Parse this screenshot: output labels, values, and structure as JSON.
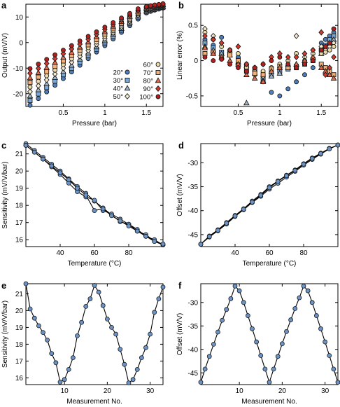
{
  "colors": {
    "blue": "#4f7fb8",
    "blue_light": "#7aa8d6",
    "gray_blue": "#9fb6c9",
    "cream": "#f3ead0",
    "beige": "#ecd9a8",
    "light_orange": "#f1b07a",
    "orange_red": "#e06a4a",
    "red": "#d23a2e",
    "dark_red": "#b11f1f"
  },
  "chart_data": [
    {
      "panel": "a",
      "type": "scatter",
      "xlabel": "Pressure (bar)",
      "ylabel": "Output (mV/V)",
      "xlim": [
        0.05,
        1.7
      ],
      "ylim": [
        -25,
        15
      ],
      "xticks": [
        0.5,
        1,
        1.5
      ],
      "xtick_labels": [
        "0.5",
        "1",
        "1.5"
      ],
      "yticks": [
        -20,
        -10,
        0,
        10
      ],
      "ytick_labels": [
        "-20",
        "-10",
        "0",
        "10"
      ],
      "legend_position": "bottom-right",
      "pressures": [
        0.1,
        0.2,
        0.3,
        0.4,
        0.5,
        0.6,
        0.7,
        0.8,
        0.9,
        1.0,
        1.1,
        1.2,
        1.3,
        1.4,
        1.5,
        1.55,
        1.6,
        1.65,
        1.7
      ],
      "series": [
        {
          "name": "20°",
          "marker": "circle",
          "color": "#4f7fb8",
          "y": [
            -24.5,
            -21.9,
            -19.3,
            -16.7,
            -14.1,
            -11.5,
            -8.9,
            -6.3,
            -3.7,
            -1.2,
            1.4,
            4.0,
            6.6,
            9.2,
            11.6,
            12.2,
            12.7,
            13.1,
            13.5
          ]
        },
        {
          "name": "30°",
          "marker": "square",
          "color": "#7aa8d6",
          "y": [
            -22.7,
            -20.1,
            -17.6,
            -15.1,
            -12.6,
            -10.1,
            -7.6,
            -5.1,
            -2.6,
            -0.1,
            2.4,
            4.9,
            7.4,
            9.9,
            12.0,
            12.5,
            13.0,
            13.4,
            13.8
          ]
        },
        {
          "name": "40°",
          "marker": "triangle",
          "color": "#9fb6c9",
          "y": [
            -20.9,
            -18.5,
            -16.1,
            -13.7,
            -11.3,
            -8.9,
            -6.5,
            -4.1,
            -1.7,
            0.7,
            3.1,
            5.5,
            7.9,
            10.3,
            12.3,
            12.8,
            13.3,
            13.7,
            14.0
          ]
        },
        {
          "name": "50°",
          "marker": "diamond",
          "color": "#f3ead0",
          "y": [
            -19.2,
            -16.9,
            -14.6,
            -12.3,
            -10.0,
            -7.7,
            -5.4,
            -3.1,
            -0.8,
            1.5,
            3.8,
            6.1,
            8.4,
            10.7,
            12.6,
            13.1,
            13.5,
            13.9,
            14.2
          ]
        },
        {
          "name": "60°",
          "marker": "circle",
          "color": "#ecd9a8",
          "y": [
            -17.4,
            -15.2,
            -13.0,
            -10.8,
            -8.6,
            -6.4,
            -4.2,
            -2.0,
            0.2,
            2.4,
            4.6,
            6.8,
            9.0,
            11.2,
            12.9,
            13.3,
            13.7,
            14.1,
            14.4
          ]
        },
        {
          "name": "70°",
          "marker": "square",
          "color": "#f1b07a",
          "y": [
            -15.6,
            -13.5,
            -11.4,
            -9.3,
            -7.2,
            -5.1,
            -3.0,
            -0.9,
            1.2,
            3.3,
            5.4,
            7.5,
            9.6,
            11.7,
            13.2,
            13.6,
            14.0,
            14.3,
            14.6
          ]
        },
        {
          "name": "80°",
          "marker": "triangle",
          "color": "#e06a4a",
          "y": [
            -13.8,
            -11.8,
            -9.8,
            -7.8,
            -5.8,
            -3.8,
            -1.8,
            0.2,
            2.2,
            4.2,
            6.2,
            8.2,
            10.2,
            12.2,
            13.5,
            13.9,
            14.2,
            14.5,
            14.8
          ]
        },
        {
          "name": "90°",
          "marker": "diamond",
          "color": "#d23a2e",
          "y": [
            -12.0,
            -10.1,
            -8.2,
            -6.3,
            -4.4,
            -2.5,
            -0.6,
            1.3,
            3.2,
            5.1,
            7.0,
            8.9,
            10.8,
            12.7,
            13.8,
            14.1,
            14.4,
            14.7,
            15.0
          ]
        },
        {
          "name": "100°",
          "marker": "circle",
          "color": "#b11f1f",
          "y": [
            -10.2,
            -8.4,
            -6.6,
            -4.8,
            -3.0,
            -1.2,
            0.6,
            2.4,
            4.2,
            6.0,
            7.8,
            9.6,
            11.4,
            13.2,
            14.1,
            14.4,
            14.7,
            14.9,
            15.2
          ]
        }
      ]
    },
    {
      "panel": "b",
      "type": "scatter",
      "xlabel": "Pressure (bar)",
      "ylabel": "Linear error (%)",
      "xlim": [
        0.05,
        1.7
      ],
      "ylim": [
        -0.65,
        0.8
      ],
      "xticks": [
        0.5,
        1,
        1.5
      ],
      "xtick_labels": [
        "0.5",
        "1",
        "1.5"
      ],
      "yticks": [
        -0.5,
        0,
        0.5
      ],
      "ytick_labels": [
        "-0.5",
        "0",
        "0.5"
      ],
      "pressures": [
        0.1,
        0.2,
        0.3,
        0.4,
        0.5,
        0.6,
        0.7,
        0.8,
        0.9,
        1.0,
        1.1,
        1.2,
        1.3,
        1.4,
        1.5,
        1.55,
        1.6,
        1.65
      ],
      "series": [
        {
          "name": "20°",
          "y": [
            0.3,
            0.22,
            0.33,
            0.15,
            0.05,
            -0.05,
            -0.15,
            -0.3,
            -0.45,
            -0.5,
            -0.4,
            -0.3,
            -0.2,
            -0.1,
            0.25,
            0.3,
            0.35,
            0.4
          ]
        },
        {
          "name": "30°",
          "y": [
            0.25,
            0.18,
            0.12,
            0.1,
            0.02,
            -0.08,
            -0.12,
            -0.25,
            -0.2,
            -0.15,
            -0.12,
            -0.08,
            -0.05,
            0.02,
            0.15,
            0.22,
            0.3,
            0.35
          ]
        },
        {
          "name": "40°",
          "y": [
            0.2,
            0.15,
            0.1,
            0.08,
            -0.02,
            -0.6,
            -0.18,
            -0.28,
            -0.22,
            -0.18,
            -0.1,
            -0.05,
            0.0,
            0.05,
            0.1,
            0.18,
            0.25,
            0.3
          ]
        },
        {
          "name": "50°",
          "y": [
            0.45,
            0.35,
            0.25,
            0.12,
            -0.05,
            -0.1,
            -0.15,
            -0.22,
            -0.15,
            -0.1,
            -0.08,
            0.35,
            0.05,
            0.15,
            0.2,
            0.15,
            0.2,
            0.25
          ]
        },
        {
          "name": "60°",
          "y": [
            0.4,
            0.3,
            0.2,
            0.15,
            0.1,
            -0.1,
            -0.2,
            -0.15,
            -0.1,
            -0.05,
            0.0,
            0.1,
            0.0,
            0.1,
            0.1,
            0.12,
            0.15,
            0.2
          ]
        },
        {
          "name": "70°",
          "y": [
            0.1,
            0.12,
            0.05,
            0.08,
            0.0,
            -0.15,
            -0.18,
            -0.2,
            -0.12,
            -0.08,
            -0.1,
            -0.1,
            -0.05,
            0.0,
            -0.05,
            -0.1,
            -0.15,
            -0.2
          ]
        },
        {
          "name": "80°",
          "y": [
            0.18,
            0.1,
            0.05,
            0.0,
            -0.05,
            -0.2,
            -0.25,
            -0.3,
            -0.15,
            -0.1,
            -0.05,
            -0.05,
            0.0,
            0.05,
            -0.1,
            -0.15,
            -0.2,
            -0.25
          ]
        },
        {
          "name": "90°",
          "y": [
            0.35,
            0.3,
            0.25,
            0.15,
            0.2,
            -0.05,
            -0.1,
            -0.05,
            0.05,
            0.1,
            0.05,
            0.05,
            0.1,
            0.15,
            0.4,
            -0.2,
            -0.1,
            0.05
          ]
        },
        {
          "name": "100°",
          "y": [
            0.05,
            0.0,
            0.02,
            -0.05,
            -0.1,
            -0.15,
            -0.1,
            -0.05,
            0.0,
            0.05,
            -0.05,
            -0.1,
            -0.05,
            0.0,
            0.15,
            0.2,
            0.25,
            0.45
          ]
        }
      ]
    },
    {
      "panel": "c",
      "type": "line",
      "xlabel": "Temperature (°C)",
      "ylabel": "Sensitivity (mV/V/bar)",
      "xlim": [
        20,
        100
      ],
      "ylim": [
        15.6,
        21.6
      ],
      "xticks": [
        40,
        60,
        80
      ],
      "xtick_labels": [
        "40",
        "60",
        "80"
      ],
      "yticks": [
        16,
        17,
        18,
        19,
        20,
        21
      ],
      "ytick_labels": [
        "16",
        "17",
        "18",
        "19",
        "20",
        "21"
      ],
      "cycles": [
        {
          "x": [
            20,
            25,
            30,
            35,
            40,
            45,
            50,
            55,
            60,
            65,
            70,
            75,
            80,
            85,
            90,
            95,
            100
          ],
          "y": [
            21.6,
            21.2,
            20.8,
            20.4,
            20.0,
            19.55,
            19.1,
            18.7,
            18.25,
            17.85,
            17.45,
            17.05,
            16.9,
            16.5,
            16.3,
            15.9,
            15.7
          ]
        },
        {
          "x": [
            100,
            95,
            90,
            85,
            80,
            75,
            70,
            65,
            60,
            55,
            50,
            45,
            40,
            35,
            30,
            25,
            20
          ],
          "y": [
            15.7,
            16.0,
            16.2,
            16.6,
            16.9,
            17.2,
            17.5,
            17.7,
            18.3,
            18.5,
            18.8,
            19.3,
            19.8,
            20.25,
            20.7,
            21.1,
            21.5
          ]
        },
        {
          "x": [
            20,
            25,
            30,
            35,
            40,
            45,
            50,
            55,
            60,
            65,
            70,
            75,
            80,
            85,
            90,
            95,
            100
          ],
          "y": [
            21.5,
            21.1,
            20.7,
            20.3,
            19.9,
            19.5,
            19.0,
            18.6,
            17.7,
            17.8,
            17.4,
            17.1,
            16.8,
            16.5,
            16.2,
            15.9,
            15.75
          ]
        }
      ]
    },
    {
      "panel": "d",
      "type": "line",
      "xlabel": "Temperature (°C)",
      "ylabel": "Offset (mV/V)",
      "xlim": [
        20,
        100
      ],
      "ylim": [
        -47.5,
        -26
      ],
      "xticks": [
        40,
        60,
        80
      ],
      "xtick_labels": [
        "40",
        "60",
        "80"
      ],
      "yticks": [
        -45,
        -40,
        -35,
        -30
      ],
      "ytick_labels": [
        "-45",
        "-40",
        "-35",
        "-30"
      ],
      "cycles": [
        {
          "x": [
            20,
            25,
            30,
            35,
            40,
            45,
            50,
            55,
            60,
            65,
            70,
            75,
            80,
            85,
            90,
            95,
            100
          ],
          "y": [
            -47.0,
            -45.3,
            -44.0,
            -42.5,
            -41.0,
            -39.6,
            -38.0,
            -36.6,
            -35.0,
            -33.8,
            -32.6,
            -31.5,
            -30.2,
            -29.0,
            -28.0,
            -27.0,
            -26.3
          ]
        },
        {
          "x": [
            100,
            95,
            90,
            85,
            80,
            75,
            70,
            65,
            60,
            55,
            50,
            45,
            40,
            35,
            30,
            25,
            20
          ],
          "y": [
            -26.3,
            -27.1,
            -28.2,
            -29.3,
            -30.5,
            -31.8,
            -33.0,
            -34.3,
            -35.5,
            -37.0,
            -38.3,
            -39.8,
            -41.2,
            -42.8,
            -44.2,
            -45.5,
            -47.0
          ]
        },
        {
          "x": [
            20,
            25,
            30,
            35,
            40,
            45,
            50,
            55,
            60,
            65,
            70,
            75,
            80,
            85,
            90,
            95,
            100
          ],
          "y": [
            -47.0,
            -45.4,
            -44.1,
            -42.6,
            -41.1,
            -39.7,
            -38.2,
            -36.8,
            -35.2,
            -33.9,
            -32.7,
            -31.6,
            -30.3,
            -29.1,
            -28.1,
            -27.1,
            -26.3
          ]
        }
      ]
    },
    {
      "panel": "e",
      "type": "line",
      "xlabel": "Measurement No.",
      "ylabel": "Sensitivity (mV/V/bar)",
      "xlim": [
        1,
        33
      ],
      "ylim": [
        15.6,
        21.6
      ],
      "xticks": [
        10,
        20,
        30
      ],
      "xtick_labels": [
        "10",
        "20",
        "30"
      ],
      "yticks": [
        16,
        17,
        18,
        19,
        20,
        21
      ],
      "ytick_labels": [
        "16",
        "17",
        "18",
        "19",
        "20",
        "21"
      ],
      "x": [
        1,
        2,
        3,
        4,
        5,
        6,
        7,
        8,
        9,
        10,
        11,
        12,
        13,
        14,
        15,
        16,
        17,
        18,
        19,
        20,
        21,
        22,
        23,
        24,
        25,
        26,
        27,
        28,
        29,
        30,
        31,
        32,
        33
      ],
      "y": [
        21.6,
        20.1,
        19.55,
        19.1,
        18.7,
        18.25,
        17.45,
        16.9,
        15.75,
        15.9,
        16.5,
        17.2,
        18.5,
        19.3,
        20.25,
        20.7,
        21.5,
        21.1,
        20.3,
        19.5,
        19.0,
        18.6,
        17.7,
        16.8,
        15.7,
        15.9,
        16.5,
        17.2,
        17.8,
        18.6,
        19.9,
        20.7,
        21.4
      ]
    },
    {
      "panel": "f",
      "type": "line",
      "xlabel": "Measurement No.",
      "ylabel": "Offset (mV/V)",
      "xlim": [
        1,
        33
      ],
      "ylim": [
        -47.5,
        -26
      ],
      "xticks": [
        10,
        20,
        30
      ],
      "xtick_labels": [
        "10",
        "20",
        "30"
      ],
      "yticks": [
        -45,
        -40,
        -35,
        -30
      ],
      "ytick_labels": [
        "-45",
        "-40",
        "-35",
        "-30"
      ],
      "x": [
        1,
        2,
        3,
        4,
        5,
        6,
        7,
        8,
        9,
        10,
        11,
        12,
        13,
        14,
        15,
        16,
        17,
        18,
        19,
        20,
        21,
        22,
        23,
        24,
        25,
        26,
        27,
        28,
        29,
        30,
        31,
        32,
        33
      ],
      "y": [
        -47.0,
        -44.2,
        -41.5,
        -38.9,
        -36.3,
        -33.8,
        -31.5,
        -29.2,
        -26.5,
        -27.5,
        -30.0,
        -32.8,
        -35.6,
        -38.4,
        -41.3,
        -44.2,
        -47.0,
        -44.2,
        -41.5,
        -38.8,
        -36.2,
        -33.7,
        -31.3,
        -29.0,
        -26.5,
        -27.5,
        -30.0,
        -32.8,
        -35.6,
        -38.4,
        -41.3,
        -44.2,
        -47.0
      ]
    }
  ]
}
